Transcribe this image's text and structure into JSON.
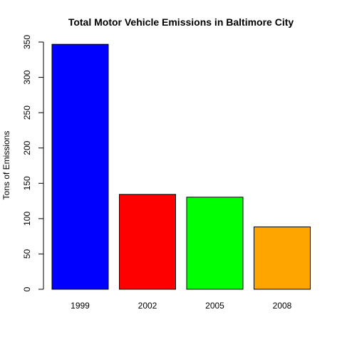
{
  "chart_data": {
    "type": "bar",
    "title": "Total Motor Vehicle Emissions in Baltimore City",
    "xlabel": "",
    "ylabel": "Tons of Emissions",
    "categories": [
      "1999",
      "2002",
      "2005",
      "2008"
    ],
    "values": [
      346.8,
      134.3,
      130.4,
      88.3
    ],
    "colors": [
      "#0000ff",
      "#ff0000",
      "#00ff00",
      "#ffa500"
    ],
    "ylim": [
      0,
      350
    ],
    "yticks": [
      "0",
      "50",
      "100",
      "150",
      "200",
      "250",
      "300",
      "350"
    ],
    "grid": false,
    "legend": "none"
  }
}
